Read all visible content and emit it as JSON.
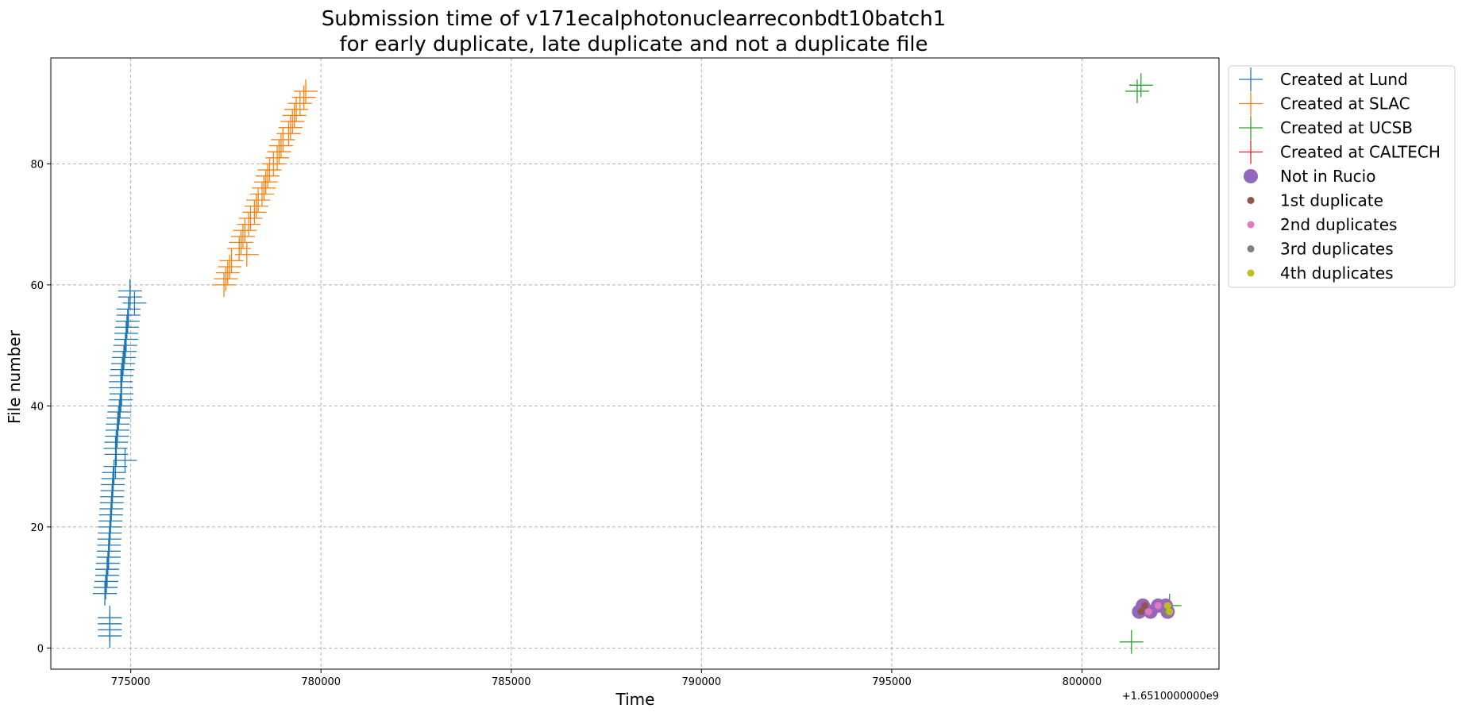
{
  "chart_data": {
    "type": "scatter",
    "title_lines": [
      "Submission time of v171ecalphotonuclearreconbdt10batch1",
      "for early duplicate, late duplicate and not a duplicate file"
    ],
    "xlabel": "Time",
    "ylabel": "File number",
    "x_offset_label": "+1.6510000000e9",
    "xlim": [
      772900,
      803600
    ],
    "ylim": [
      -3.5,
      97.5
    ],
    "xticks": [
      775000,
      780000,
      785000,
      790000,
      795000,
      800000
    ],
    "xtick_labels": [
      "775000",
      "780000",
      "785000",
      "790000",
      "795000",
      "800000"
    ],
    "yticks": [
      0,
      20,
      40,
      60,
      80
    ],
    "ytick_labels": [
      "0",
      "20",
      "40",
      "60",
      "80"
    ],
    "grid": true,
    "legend_position": "outside-top-right",
    "series": [
      {
        "name": "Created at Lund",
        "marker": "plus",
        "color": "#1f77b4",
        "points": [
          [
            774450,
            2
          ],
          [
            774450,
            3
          ],
          [
            774450,
            4
          ],
          [
            774450,
            5
          ],
          [
            774320,
            9
          ],
          [
            774340,
            10
          ],
          [
            774360,
            11
          ],
          [
            774380,
            12
          ],
          [
            774380,
            13
          ],
          [
            774400,
            14
          ],
          [
            774420,
            15
          ],
          [
            774420,
            16
          ],
          [
            774430,
            17
          ],
          [
            774440,
            18
          ],
          [
            774450,
            19
          ],
          [
            774460,
            20
          ],
          [
            774470,
            21
          ],
          [
            774480,
            22
          ],
          [
            774490,
            23
          ],
          [
            774500,
            24
          ],
          [
            774510,
            25
          ],
          [
            774520,
            26
          ],
          [
            774530,
            27
          ],
          [
            774540,
            28
          ],
          [
            774560,
            29
          ],
          [
            774600,
            30
          ],
          [
            774850,
            31
          ],
          [
            774620,
            32
          ],
          [
            774600,
            33
          ],
          [
            774620,
            34
          ],
          [
            774640,
            35
          ],
          [
            774650,
            36
          ],
          [
            774660,
            37
          ],
          [
            774680,
            38
          ],
          [
            774700,
            39
          ],
          [
            774720,
            40
          ],
          [
            774740,
            41
          ],
          [
            774760,
            42
          ],
          [
            774740,
            43
          ],
          [
            774740,
            44
          ],
          [
            774760,
            45
          ],
          [
            774780,
            46
          ],
          [
            774800,
            47
          ],
          [
            774820,
            48
          ],
          [
            774840,
            49
          ],
          [
            774860,
            50
          ],
          [
            774880,
            51
          ],
          [
            774880,
            52
          ],
          [
            774900,
            53
          ],
          [
            774920,
            54
          ],
          [
            774940,
            55
          ],
          [
            774940,
            56
          ],
          [
            775100,
            57
          ],
          [
            774980,
            58
          ],
          [
            774980,
            59
          ]
        ]
      },
      {
        "name": "Created at SLAC",
        "marker": "plus",
        "color": "#ff7f0e",
        "points": [
          [
            777450,
            60
          ],
          [
            777500,
            61
          ],
          [
            777550,
            62
          ],
          [
            777600,
            63
          ],
          [
            777650,
            64
          ],
          [
            778050,
            65
          ],
          [
            777850,
            66
          ],
          [
            777900,
            67
          ],
          [
            777950,
            68
          ],
          [
            778000,
            69
          ],
          [
            778100,
            70
          ],
          [
            778150,
            71
          ],
          [
            778250,
            72
          ],
          [
            778300,
            73
          ],
          [
            778350,
            74
          ],
          [
            778450,
            75
          ],
          [
            778500,
            76
          ],
          [
            778550,
            77
          ],
          [
            778600,
            78
          ],
          [
            778650,
            79
          ],
          [
            778750,
            80
          ],
          [
            778850,
            81
          ],
          [
            778900,
            82
          ],
          [
            778950,
            83
          ],
          [
            779000,
            84
          ],
          [
            779150,
            85
          ],
          [
            779200,
            86
          ],
          [
            779250,
            87
          ],
          [
            779300,
            88
          ],
          [
            779350,
            89
          ],
          [
            779450,
            90
          ],
          [
            779550,
            91
          ],
          [
            779600,
            92
          ]
        ]
      },
      {
        "name": "Created at UCSB",
        "marker": "plus",
        "color": "#2ca02c",
        "points": [
          [
            801300,
            1
          ],
          [
            802300,
            7
          ],
          [
            801450,
            92
          ],
          [
            801550,
            93
          ]
        ]
      },
      {
        "name": "Created at CALTECH",
        "marker": "plus",
        "color": "#d62728",
        "points": []
      },
      {
        "name": "Not in Rucio",
        "marker": "circle-large",
        "color": "#9467bd",
        "points": [
          [
            801500,
            6
          ],
          [
            801600,
            7
          ],
          [
            801800,
            6
          ],
          [
            802000,
            7
          ],
          [
            802200,
            7
          ],
          [
            802250,
            6
          ]
        ]
      },
      {
        "name": "1st duplicate",
        "marker": "circle-small",
        "color": "#8c564b",
        "points": [
          [
            801550,
            6
          ],
          [
            801650,
            7
          ]
        ]
      },
      {
        "name": "2nd duplicates",
        "marker": "circle-small",
        "color": "#e377c2",
        "points": [
          [
            801750,
            6
          ],
          [
            802000,
            7
          ]
        ]
      },
      {
        "name": "3rd duplicates",
        "marker": "circle-small",
        "color": "#7f7f7f",
        "points": [
          [
            802200,
            6
          ]
        ]
      },
      {
        "name": "4th duplicates",
        "marker": "circle-small",
        "color": "#bcbd22",
        "points": [
          [
            802300,
            6
          ],
          [
            802250,
            7
          ]
        ]
      }
    ]
  }
}
